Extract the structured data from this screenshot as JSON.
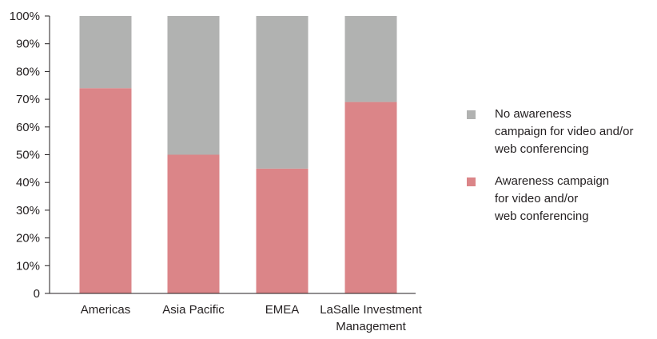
{
  "chart_data": {
    "type": "bar",
    "stacked": true,
    "categories": [
      "Americas",
      "Asia Pacific",
      "EMEA",
      "LaSalle Investment\nManagement"
    ],
    "series": [
      {
        "name": "Awareness campaign\nfor video and/or\nweb conferencing",
        "values": [
          74,
          50,
          45,
          69
        ],
        "color": "#db8588"
      },
      {
        "name": "No awareness\ncampaign for video and/or\nweb conferencing",
        "values": [
          26,
          50,
          55,
          31
        ],
        "color": "#b1b2b1"
      }
    ],
    "y_ticks": [
      "0",
      "10%",
      "20%",
      "30%",
      "40%",
      "50%",
      "60%",
      "70%",
      "80%",
      "90%",
      "100%"
    ],
    "ylim": [
      0,
      100
    ],
    "grid": false,
    "legend_position": "right"
  }
}
